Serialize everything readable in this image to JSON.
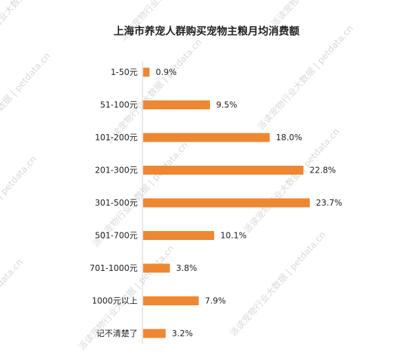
{
  "chart_data": {
    "type": "bar",
    "orientation": "horizontal",
    "title": "上海市养宠人群购买宠物主粮月均消费额",
    "categories": [
      "1-50元",
      "51-100元",
      "101-200元",
      "201-300元",
      "301-500元",
      "501-700元",
      "701-1000元",
      "1000元以上",
      "记不清楚了"
    ],
    "values": [
      0.9,
      9.5,
      18.0,
      22.8,
      23.7,
      10.1,
      3.8,
      7.9,
      3.2
    ],
    "value_labels": [
      "0.9%",
      "9.5%",
      "18.0%",
      "22.8%",
      "23.7%",
      "10.1%",
      "3.8%",
      "7.9%",
      "3.2%"
    ],
    "xlim": [
      0,
      23.7
    ],
    "grid": false,
    "legend": "none"
  },
  "colors": {
    "bar": "#ee8732",
    "axis": "#cfcfcf",
    "text": "#222222"
  },
  "watermark": {
    "text": "派读宠物行业大数据 | petdata.cn"
  }
}
